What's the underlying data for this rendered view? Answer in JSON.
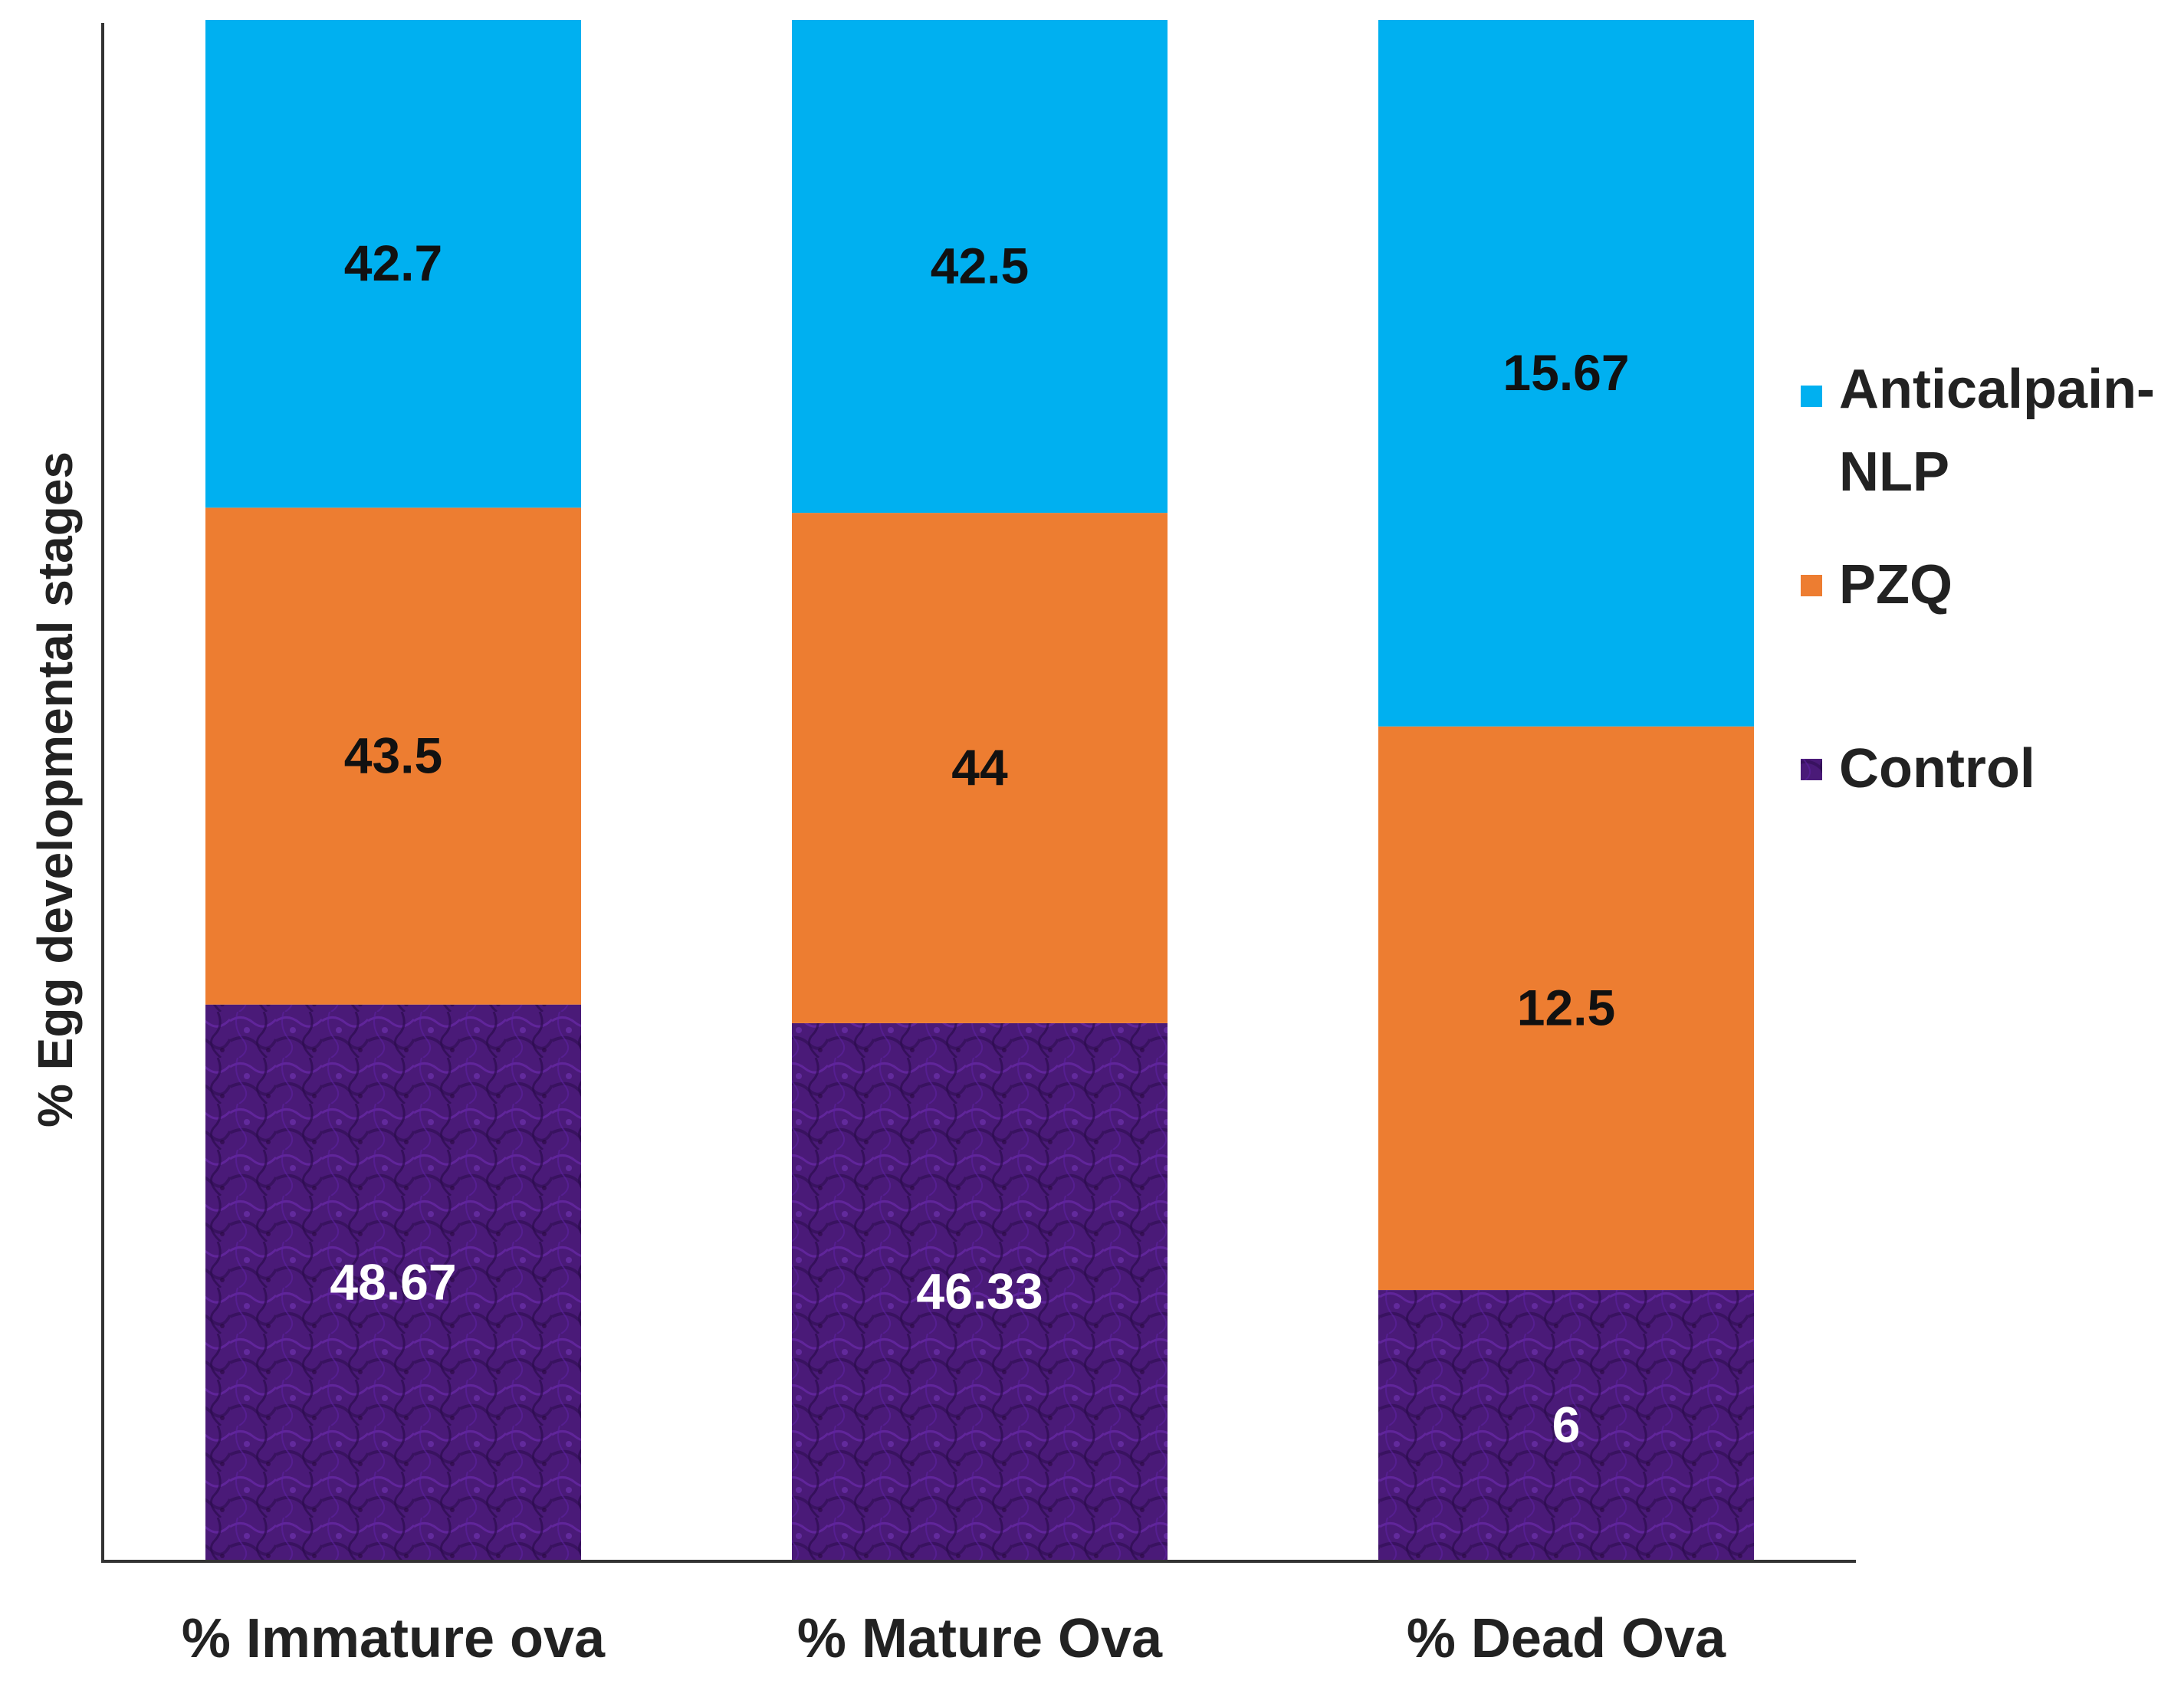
{
  "chart_data": {
    "type": "bar",
    "stacked": true,
    "title": "",
    "xlabel": "",
    "ylabel": "% Egg developmental stages",
    "categories": [
      "% Immature ova",
      "% Mature Ova",
      "% Dead Ova"
    ],
    "series": [
      {
        "name": "Control",
        "color": "#4a1a78",
        "label_color": "#ffffff",
        "values": [
          48.67,
          46.33,
          6
        ]
      },
      {
        "name": "PZQ",
        "color": "#ed7d31",
        "label_color": "#111111",
        "values": [
          43.5,
          44,
          12.5
        ]
      },
      {
        "name": "Anticalpain-NLP",
        "color": "#00b0f0",
        "label_color": "#111111",
        "values": [
          42.7,
          42.5,
          15.67
        ]
      }
    ],
    "legend": {
      "placement": "right",
      "entries": [
        {
          "line1": "Anticalpain-",
          "line2": "NLP"
        },
        {
          "line1": "PZQ"
        },
        {
          "line1": "Control"
        }
      ]
    },
    "grid": false
  }
}
